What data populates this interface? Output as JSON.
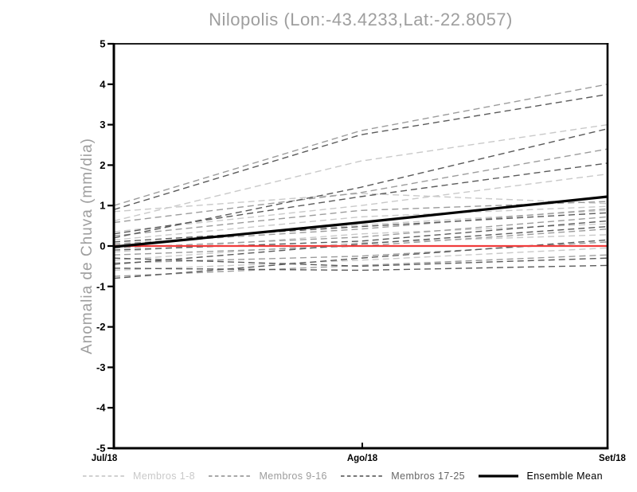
{
  "chart_data": {
    "type": "line",
    "title": "Nilopolis (Lon:-43.4233,Lat:-22.8057)",
    "ylabel": "Anomalia de Chuva (mm/dia)",
    "xlabel": "",
    "x_categories": [
      "Jul/18",
      "Ago/18",
      "Set/18"
    ],
    "ylim": [
      -5,
      5
    ],
    "yticks": [
      5,
      4,
      3,
      2,
      1,
      0,
      -1,
      -2,
      -3,
      -4,
      -5
    ],
    "grid": "off",
    "zero_line": {
      "y": 0,
      "color": "#f03c3c"
    },
    "groups": [
      {
        "label": "Membros 1-8",
        "color": "#c9c9c9",
        "style": "dashed",
        "members": [
          [
            0.62,
            2.1,
            3.0
          ],
          [
            0.85,
            1.3,
            1.05
          ],
          [
            0.35,
            1.0,
            1.78
          ],
          [
            0.15,
            0.72,
            0.98
          ],
          [
            0.02,
            0.52,
            0.88
          ],
          [
            -0.15,
            0.3,
            0.55
          ],
          [
            -0.35,
            0.08,
            0.28
          ],
          [
            -0.6,
            -0.35,
            -0.05
          ]
        ]
      },
      {
        "label": "Membros 9-16",
        "color": "#9c9c9c",
        "style": "dashed",
        "members": [
          [
            1.0,
            2.85,
            4.0
          ],
          [
            0.58,
            1.32,
            2.4
          ],
          [
            0.25,
            0.88,
            1.1
          ],
          [
            0.05,
            0.42,
            0.92
          ],
          [
            -0.05,
            0.22,
            0.72
          ],
          [
            -0.22,
            0.0,
            0.42
          ],
          [
            -0.42,
            -0.25,
            0.1
          ],
          [
            -0.75,
            -0.48,
            -0.22
          ]
        ]
      },
      {
        "label": "Membros 17-25",
        "color": "#5a5a5a",
        "style": "dashed",
        "members": [
          [
            0.9,
            2.75,
            3.75
          ],
          [
            0.2,
            1.45,
            2.9
          ],
          [
            0.3,
            1.22,
            2.05
          ],
          [
            0.1,
            0.48,
            0.82
          ],
          [
            -0.1,
            0.12,
            0.62
          ],
          [
            -0.45,
            0.05,
            0.48
          ],
          [
            -0.55,
            -0.6,
            -0.48
          ],
          [
            -0.8,
            -0.3,
            0.15
          ],
          [
            -0.3,
            -0.5,
            -0.3
          ]
        ]
      }
    ],
    "mean": {
      "label": "Ensemble Mean",
      "color": "#000000",
      "style": "solid",
      "values": [
        -0.02,
        0.58,
        1.22
      ]
    },
    "legend_position": "bottom",
    "legend": [
      {
        "label": "Membros 1-8",
        "color": "#c9c9c9",
        "swatch": "dashed"
      },
      {
        "label": "Membros 9-16",
        "color": "#9c9c9c",
        "swatch": "dashed"
      },
      {
        "label": "Membros 17-25",
        "color": "#666666",
        "swatch": "dashed"
      },
      {
        "label": "Ensemble Mean",
        "color": "#000000",
        "swatch": "solid"
      }
    ]
  }
}
